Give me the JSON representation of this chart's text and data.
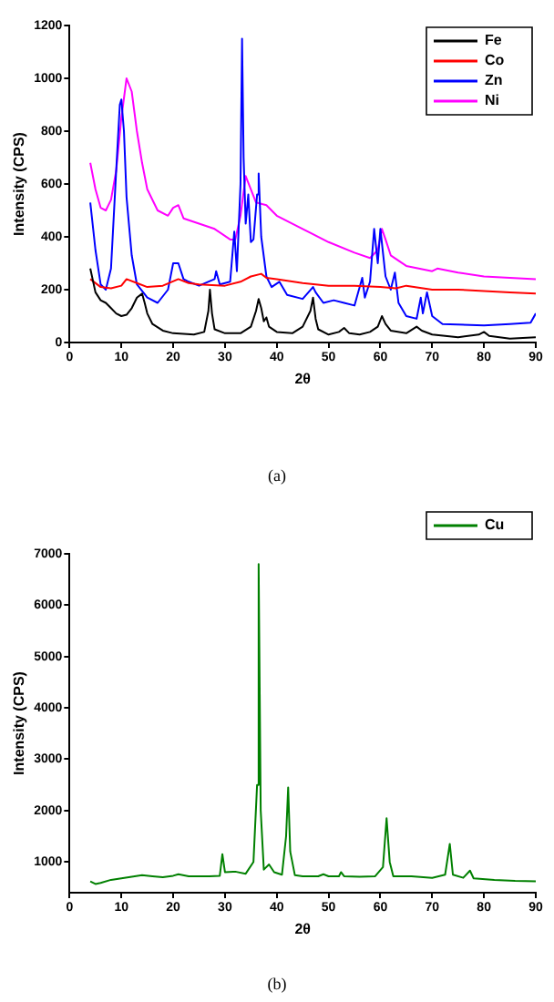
{
  "chart_data": [
    {
      "type": "line",
      "xlabel": "2θ",
      "ylabel": "Intensity (CPS)",
      "annotations": [
        "(a)"
      ],
      "xlim": [
        0,
        90
      ],
      "xticks": [
        0,
        10,
        20,
        30,
        40,
        50,
        60,
        70,
        80,
        90
      ],
      "ylim": [
        0,
        1200
      ],
      "yticks": [
        0,
        200,
        400,
        600,
        800,
        1000,
        1200
      ],
      "grid": false,
      "legend": "top right",
      "marker": "none",
      "series": [
        {
          "name": "Fe",
          "color": "#000000",
          "x": [
            4,
            5,
            6,
            7,
            8,
            9,
            10,
            11,
            12,
            13,
            14,
            14.5,
            15,
            16,
            18,
            20,
            24,
            26,
            26.8,
            27.1,
            27.5,
            28,
            30,
            33,
            35,
            36,
            36.5,
            37,
            37.5,
            38,
            38.5,
            40,
            43,
            45,
            46.5,
            47,
            47.5,
            48,
            50,
            52,
            53,
            54,
            56,
            58,
            59.5,
            60.3,
            61,
            62,
            65,
            67,
            68,
            70,
            75,
            79,
            80,
            81,
            85,
            90
          ],
          "values": [
            280,
            190,
            160,
            150,
            130,
            110,
            100,
            105,
            130,
            170,
            185,
            150,
            110,
            70,
            45,
            35,
            30,
            40,
            120,
            200,
            110,
            50,
            35,
            35,
            60,
            120,
            165,
            130,
            80,
            95,
            60,
            40,
            35,
            60,
            120,
            170,
            90,
            50,
            30,
            40,
            55,
            35,
            30,
            40,
            60,
            100,
            70,
            45,
            35,
            60,
            45,
            30,
            20,
            30,
            40,
            25,
            15,
            20
          ]
        },
        {
          "name": "Co",
          "color": "#ff0000",
          "x": [
            4,
            6,
            8,
            10,
            11,
            13,
            15,
            18,
            21,
            23,
            25,
            30,
            33,
            35,
            37,
            38,
            40,
            45,
            50,
            55,
            60,
            63,
            65,
            70,
            75,
            80,
            85,
            90
          ],
          "values": [
            240,
            210,
            205,
            215,
            240,
            225,
            210,
            215,
            240,
            225,
            220,
            215,
            230,
            250,
            260,
            245,
            240,
            225,
            215,
            215,
            210,
            205,
            215,
            200,
            200,
            195,
            190,
            185
          ]
        },
        {
          "name": "Zn",
          "color": "#0000ff",
          "x": [
            4,
            5,
            6,
            7,
            8,
            9,
            9.7,
            10,
            10.5,
            11,
            12,
            13,
            15,
            17,
            19,
            20,
            21,
            22,
            23,
            25,
            28,
            28.3,
            29,
            31,
            31.8,
            32.3,
            33,
            33.3,
            33.6,
            34,
            34.5,
            35,
            35.5,
            36.2,
            36.5,
            37,
            38,
            39,
            40.5,
            42,
            45,
            47,
            47.5,
            49,
            51,
            53,
            55,
            56.5,
            57,
            58,
            58.8,
            59.5,
            60,
            61,
            62,
            62.8,
            63.5,
            65,
            67,
            67.8,
            68.2,
            69,
            70,
            72,
            80,
            85,
            89,
            90
          ],
          "values": [
            530,
            350,
            220,
            200,
            280,
            650,
            900,
            920,
            800,
            550,
            330,
            220,
            170,
            150,
            200,
            300,
            300,
            240,
            230,
            215,
            240,
            270,
            220,
            230,
            420,
            270,
            600,
            1150,
            700,
            450,
            560,
            380,
            390,
            560,
            640,
            400,
            250,
            210,
            230,
            180,
            165,
            210,
            190,
            150,
            160,
            150,
            140,
            245,
            170,
            230,
            430,
            300,
            430,
            250,
            200,
            265,
            150,
            100,
            90,
            170,
            110,
            190,
            100,
            70,
            65,
            70,
            75,
            110
          ]
        },
        {
          "name": "Ni",
          "color": "#ff00ff",
          "x": [
            4,
            5,
            6,
            7,
            8,
            9,
            10,
            11,
            12,
            13,
            14,
            15,
            17,
            19,
            20,
            21,
            22,
            25,
            28,
            31,
            32,
            33,
            34,
            35,
            36,
            38,
            40,
            45,
            50,
            55,
            58,
            59.5,
            60.3,
            61,
            62,
            65,
            70,
            71,
            75,
            80,
            85,
            90
          ],
          "values": [
            680,
            580,
            510,
            500,
            540,
            650,
            850,
            1000,
            950,
            800,
            680,
            580,
            500,
            480,
            510,
            520,
            470,
            450,
            430,
            390,
            390,
            480,
            630,
            580,
            530,
            520,
            480,
            430,
            380,
            340,
            320,
            350,
            430,
            390,
            330,
            290,
            270,
            280,
            265,
            250,
            245,
            240
          ]
        }
      ]
    },
    {
      "type": "line",
      "xlabel": "2θ",
      "ylabel": "Intensity (CPS)",
      "annotations": [
        "(b)"
      ],
      "xlim": [
        0,
        90
      ],
      "xticks": [
        0,
        10,
        20,
        30,
        40,
        50,
        60,
        70,
        80,
        90
      ],
      "ylim": [
        400,
        7000
      ],
      "yticks": [
        1000,
        2000,
        3000,
        4000,
        5000,
        6000,
        7000
      ],
      "grid": false,
      "legend": "top right",
      "marker": "none",
      "series": [
        {
          "name": "Cu",
          "color": "#008000",
          "x": [
            4,
            5,
            6,
            8,
            10,
            12,
            14,
            16,
            18,
            20,
            21,
            23,
            27,
            29,
            29.5,
            30,
            32,
            34,
            35.5,
            36.2,
            36.5,
            36.9,
            37.5,
            38.5,
            39.5,
            41,
            41.8,
            42.2,
            42.6,
            43.5,
            45,
            48,
            49,
            50,
            52,
            52.4,
            53,
            56,
            59,
            60.5,
            61.2,
            61.8,
            62.5,
            66,
            70,
            72.5,
            73.4,
            74,
            76,
            77.3,
            78,
            82,
            86,
            90
          ],
          "values": [
            620,
            570,
            590,
            650,
            680,
            710,
            740,
            720,
            700,
            730,
            760,
            720,
            720,
            730,
            1150,
            800,
            810,
            770,
            1000,
            2500,
            6800,
            2000,
            850,
            950,
            800,
            750,
            1500,
            2450,
            1200,
            740,
            720,
            720,
            760,
            720,
            720,
            800,
            720,
            710,
            720,
            900,
            1850,
            1000,
            720,
            720,
            690,
            750,
            1350,
            750,
            690,
            830,
            680,
            650,
            630,
            620
          ]
        }
      ]
    }
  ]
}
